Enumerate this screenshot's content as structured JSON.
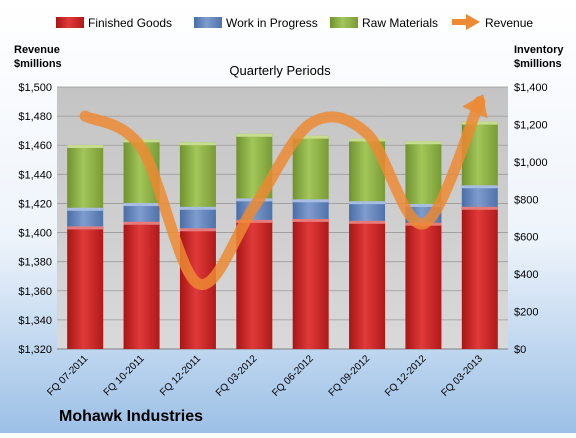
{
  "company": "Mohawk Industries",
  "colors": {
    "finished_goods": "#cc2222",
    "work_in_progress": "#5b7fb8",
    "raw_materials": "#8db040",
    "revenue": "#ec8a33",
    "plot_bg": "#c9c9c9"
  },
  "chart_data": {
    "type": "bar",
    "stacked": true,
    "title": "Quarterly Periods",
    "ylabel_left": "Revenue\n$millions",
    "ylabel_right": "Inventory\n$millions",
    "legend_position": "top",
    "grid": true,
    "categories": [
      "FQ 07-2011",
      "FQ 10-2011",
      "FQ 12-2011",
      "FQ 03-2012",
      "FQ 06-2012",
      "FQ 09-2012",
      "FQ 12-2012",
      "FQ 03-2013"
    ],
    "left_axis": {
      "min": 1320,
      "max": 1500,
      "step": 20,
      "tick_labels": [
        "$1,320",
        "$1,340",
        "$1,360",
        "$1,380",
        "$1,400",
        "$1,420",
        "$1,440",
        "$1,460",
        "$1,480",
        "$1,500"
      ]
    },
    "right_axis": {
      "min": 0,
      "max": 1400,
      "step": 200,
      "tick_labels": [
        "$0",
        "$200",
        "$400",
        "$600",
        "$800",
        "$1,000",
        "$1,200",
        "$1,400"
      ]
    },
    "series": [
      {
        "name": "Finished Goods",
        "axis": "right",
        "values": [
          655,
          680,
          645,
          690,
          695,
          685,
          675,
          760
        ]
      },
      {
        "name": "Work in Progress",
        "axis": "right",
        "values": [
          100,
          100,
          115,
          115,
          105,
          105,
          100,
          115
        ]
      },
      {
        "name": "Raw Materials",
        "axis": "right",
        "values": [
          335,
          340,
          345,
          345,
          340,
          335,
          335,
          340
        ]
      },
      {
        "name": "Revenue",
        "axis": "left",
        "kind": "line",
        "values": [
          1480,
          1458,
          1365,
          1418,
          1475,
          1468,
          1406,
          1490
        ]
      }
    ]
  }
}
